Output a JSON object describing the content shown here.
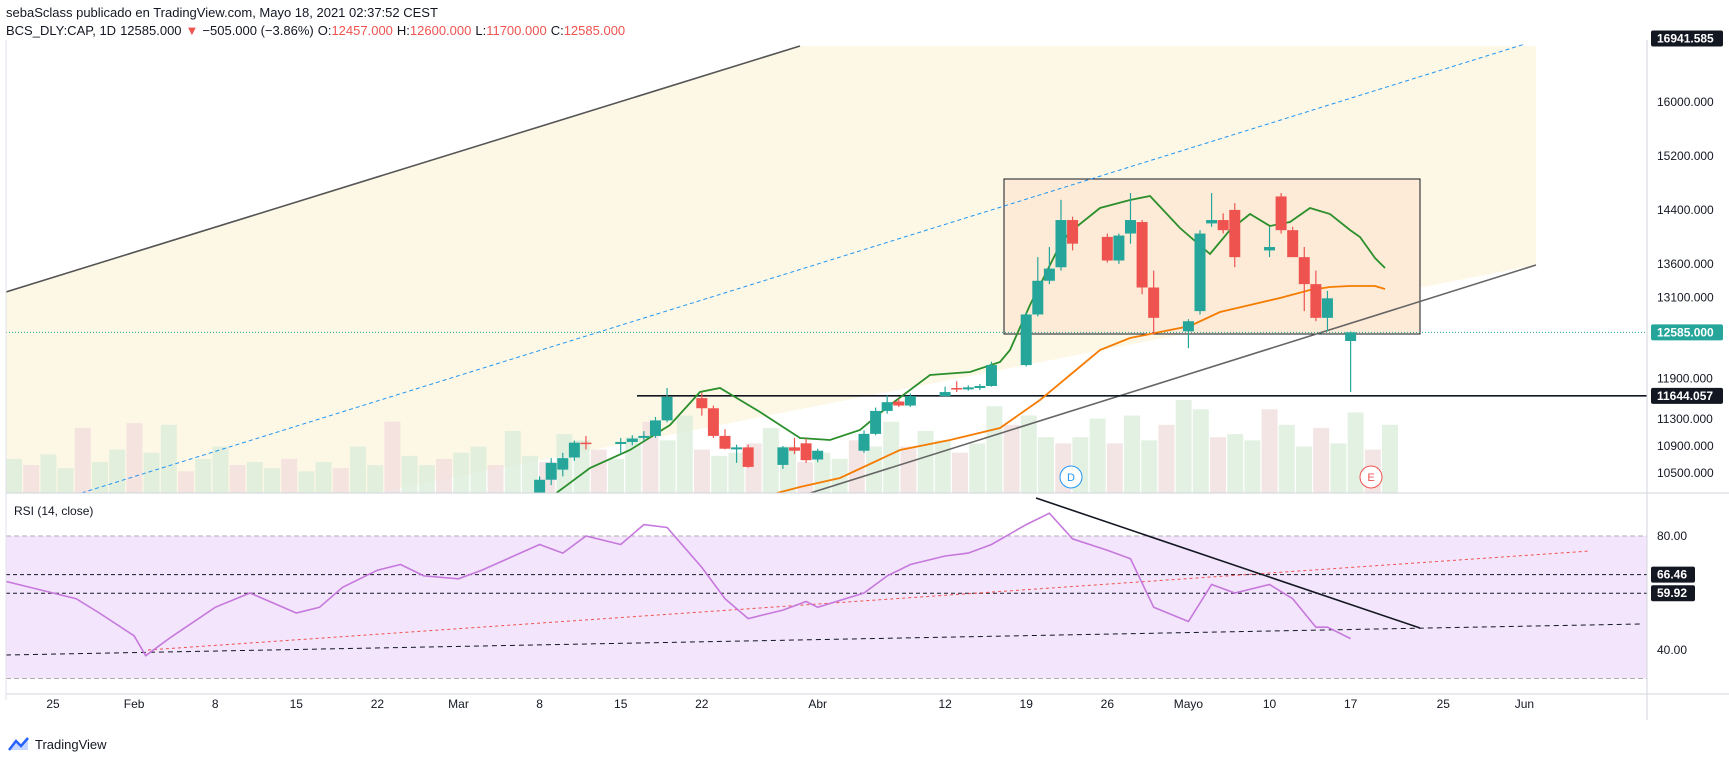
{
  "header": {
    "publisher_line": "sebaSclass publicado en TradingView.com, Mayo 18, 2021 02:37:52 CEST",
    "symbol": "BCS_DLY:CAP, 1D",
    "last": "12585.000",
    "change": "−505.000 (−3.86%)",
    "o_label": "O:",
    "o_value": "12457.000",
    "h_label": "H:",
    "h_value": "12600.000",
    "l_label": "L:",
    "l_value": "11700.000",
    "c_label": "C:",
    "c_value": "12585.000"
  },
  "brand": {
    "name": "TradingView",
    "icon": "tradingview-logo-icon"
  },
  "colors": {
    "up": "#26a69a",
    "down": "#ef5350",
    "ema_fast": "#2b8f2b",
    "ema_slow": "#f57c00",
    "rsi": "#c678dd",
    "channel_fill": "#fdf8e6",
    "box_fill": "#fdebd7",
    "rsi_band": "#f3e5fb"
  },
  "chart_data": [
    {
      "type": "candlestick",
      "symbol": "BCS_DLY:CAP",
      "interval": "1D",
      "ylim": [
        10300,
        17050
      ],
      "price_ticks": [
        "16000.000",
        "15200.000",
        "14400.000",
        "13600.000",
        "13100.000",
        "11900.000",
        "11300.000",
        "10900.000",
        "10500.000"
      ],
      "price_badges": [
        "16941.585",
        "12585.000",
        "11644.057"
      ],
      "x_ticks": [
        {
          "label": "25",
          "date": "2021-01-25"
        },
        {
          "label": "Feb",
          "date": "2021-02-01"
        },
        {
          "label": "8",
          "date": "2021-02-08"
        },
        {
          "label": "15",
          "date": "2021-02-15"
        },
        {
          "label": "22",
          "date": "2021-02-22"
        },
        {
          "label": "Mar",
          "date": "2021-03-01"
        },
        {
          "label": "8",
          "date": "2021-03-08"
        },
        {
          "label": "15",
          "date": "2021-03-15"
        },
        {
          "label": "22",
          "date": "2021-03-22"
        },
        {
          "label": "Abr",
          "date": "2021-04-01"
        },
        {
          "label": "12",
          "date": "2021-04-12"
        },
        {
          "label": "19",
          "date": "2021-04-19"
        },
        {
          "label": "26",
          "date": "2021-04-26"
        },
        {
          "label": "Mayo",
          "date": "2021-05-03"
        },
        {
          "label": "10",
          "date": "2021-05-10"
        },
        {
          "label": "17",
          "date": "2021-05-17"
        },
        {
          "label": "25",
          "date": "2021-05-25"
        },
        {
          "label": "Jun",
          "date": "2021-06-01"
        }
      ],
      "candles": [
        {
          "d": "2021-03-08",
          "o": 10200,
          "h": 10450,
          "l": 10100,
          "c": 10400
        },
        {
          "d": "2021-03-09",
          "o": 10400,
          "h": 10720,
          "l": 10320,
          "c": 10650
        },
        {
          "d": "2021-03-10",
          "o": 10550,
          "h": 10800,
          "l": 10450,
          "c": 10720
        },
        {
          "d": "2021-03-11",
          "o": 10730,
          "h": 10980,
          "l": 10680,
          "c": 10950
        },
        {
          "d": "2021-03-12",
          "o": 10950,
          "h": 11050,
          "l": 10850,
          "c": 10930
        },
        {
          "d": "2021-03-15",
          "o": 10930,
          "h": 11020,
          "l": 10780,
          "c": 10960
        },
        {
          "d": "2021-03-16",
          "o": 10960,
          "h": 11060,
          "l": 10910,
          "c": 11010
        },
        {
          "d": "2021-03-17",
          "o": 11020,
          "h": 11120,
          "l": 10980,
          "c": 11050
        },
        {
          "d": "2021-03-18",
          "o": 11050,
          "h": 11330,
          "l": 11020,
          "c": 11280
        },
        {
          "d": "2021-03-19",
          "o": 11280,
          "h": 11760,
          "l": 11250,
          "c": 11630
        },
        {
          "d": "2021-03-22",
          "o": 11610,
          "h": 11690,
          "l": 11350,
          "c": 11460
        },
        {
          "d": "2021-03-23",
          "o": 11460,
          "h": 11500,
          "l": 11020,
          "c": 11050
        },
        {
          "d": "2021-03-24",
          "o": 11050,
          "h": 11150,
          "l": 10850,
          "c": 10860
        },
        {
          "d": "2021-03-25",
          "o": 10850,
          "h": 10920,
          "l": 10650,
          "c": 10880
        },
        {
          "d": "2021-03-26",
          "o": 10880,
          "h": 10920,
          "l": 10580,
          "c": 10590
        },
        {
          "d": "2021-03-29",
          "o": 10620,
          "h": 10900,
          "l": 10560,
          "c": 10880
        },
        {
          "d": "2021-03-30",
          "o": 10880,
          "h": 11020,
          "l": 10780,
          "c": 10830
        },
        {
          "d": "2021-03-31",
          "o": 10940,
          "h": 11010,
          "l": 10650,
          "c": 10690
        },
        {
          "d": "2021-04-01",
          "o": 10700,
          "h": 10860,
          "l": 10660,
          "c": 10830
        },
        {
          "d": "2021-04-05",
          "o": 10830,
          "h": 11130,
          "l": 10800,
          "c": 11080
        },
        {
          "d": "2021-04-06",
          "o": 11080,
          "h": 11470,
          "l": 11060,
          "c": 11420
        },
        {
          "d": "2021-04-07",
          "o": 11420,
          "h": 11650,
          "l": 11380,
          "c": 11550
        },
        {
          "d": "2021-04-08",
          "o": 11560,
          "h": 11600,
          "l": 11480,
          "c": 11500
        },
        {
          "d": "2021-04-09",
          "o": 11500,
          "h": 11680,
          "l": 11480,
          "c": 11640
        },
        {
          "d": "2021-04-12",
          "o": 11640,
          "h": 11780,
          "l": 11630,
          "c": 11700
        },
        {
          "d": "2021-04-13",
          "o": 11760,
          "h": 11860,
          "l": 11700,
          "c": 11740
        },
        {
          "d": "2021-04-14",
          "o": 11740,
          "h": 11800,
          "l": 11720,
          "c": 11770
        },
        {
          "d": "2021-04-15",
          "o": 11760,
          "h": 11820,
          "l": 11730,
          "c": 11790
        },
        {
          "d": "2021-04-16",
          "o": 11790,
          "h": 12150,
          "l": 11780,
          "c": 12100
        },
        {
          "d": "2021-04-19",
          "o": 12100,
          "h": 12880,
          "l": 12080,
          "c": 12850
        },
        {
          "d": "2021-04-20",
          "o": 12850,
          "h": 13700,
          "l": 12820,
          "c": 13350
        },
        {
          "d": "2021-04-21",
          "o": 13350,
          "h": 13850,
          "l": 13300,
          "c": 13530
        },
        {
          "d": "2021-04-22",
          "o": 13550,
          "h": 14550,
          "l": 13500,
          "c": 14250
        },
        {
          "d": "2021-04-23",
          "o": 14250,
          "h": 14300,
          "l": 13800,
          "c": 13900
        },
        {
          "d": "2021-04-26",
          "o": 14000,
          "h": 14050,
          "l": 13620,
          "c": 13650
        },
        {
          "d": "2021-04-27",
          "o": 13650,
          "h": 14050,
          "l": 13600,
          "c": 14020
        },
        {
          "d": "2021-04-28",
          "o": 14050,
          "h": 14650,
          "l": 13900,
          "c": 14250
        },
        {
          "d": "2021-04-29",
          "o": 14220,
          "h": 14250,
          "l": 13150,
          "c": 13250
        },
        {
          "d": "2021-04-30",
          "o": 13250,
          "h": 13500,
          "l": 12550,
          "c": 12800
        },
        {
          "d": "2021-05-03",
          "o": 12600,
          "h": 12780,
          "l": 12350,
          "c": 12750
        },
        {
          "d": "2021-05-04",
          "o": 12900,
          "h": 14100,
          "l": 12850,
          "c": 14050
        },
        {
          "d": "2021-05-05",
          "o": 14200,
          "h": 14650,
          "l": 14150,
          "c": 14250
        },
        {
          "d": "2021-05-06",
          "o": 14250,
          "h": 14350,
          "l": 14050,
          "c": 14100
        },
        {
          "d": "2021-05-07",
          "o": 14400,
          "h": 14500,
          "l": 13550,
          "c": 13700
        },
        {
          "d": "2021-05-10",
          "o": 13800,
          "h": 14150,
          "l": 13700,
          "c": 13850
        },
        {
          "d": "2021-05-11",
          "o": 14600,
          "h": 14650,
          "l": 14050,
          "c": 14100
        },
        {
          "d": "2021-05-12",
          "o": 14100,
          "h": 14150,
          "l": 13700,
          "c": 13700
        },
        {
          "d": "2021-05-13",
          "o": 13700,
          "h": 13850,
          "l": 12900,
          "c": 13300
        },
        {
          "d": "2021-05-14",
          "o": 13300,
          "h": 13500,
          "l": 12750,
          "c": 12800
        },
        {
          "d": "2021-05-15",
          "o": 12800,
          "h": 13200,
          "l": 12600,
          "c": 13090
        },
        {
          "d": "2021-05-17",
          "o": 12457,
          "h": 12600,
          "l": 11700,
          "c": 12585
        }
      ]
    },
    {
      "type": "line",
      "title": "RSI (14, close)",
      "ylim": [
        20,
        95
      ],
      "ticks": [
        "80.00",
        "40.00"
      ],
      "badges": [
        "66.46",
        "59.92"
      ],
      "series": [
        {
          "values": [
            [
              "2021-01-20",
              65
            ],
            [
              "2021-01-25",
              60
            ],
            [
              "2021-01-27",
              58
            ],
            [
              "2021-01-29",
              53
            ],
            [
              "2021-02-01",
              45
            ],
            [
              "2021-02-02",
              38
            ],
            [
              "2021-02-04",
              44
            ],
            [
              "2021-02-08",
              55
            ],
            [
              "2021-02-11",
              60
            ],
            [
              "2021-02-15",
              53
            ],
            [
              "2021-02-17",
              55
            ],
            [
              "2021-02-19",
              62
            ],
            [
              "2021-02-22",
              68
            ],
            [
              "2021-02-24",
              70
            ],
            [
              "2021-02-26",
              66
            ],
            [
              "2021-03-01",
              65
            ],
            [
              "2021-03-03",
              68
            ],
            [
              "2021-03-08",
              77
            ],
            [
              "2021-03-10",
              74
            ],
            [
              "2021-03-12",
              80
            ],
            [
              "2021-03-15",
              77
            ],
            [
              "2021-03-17",
              84
            ],
            [
              "2021-03-19",
              83
            ],
            [
              "2021-03-22",
              69
            ],
            [
              "2021-03-24",
              58
            ],
            [
              "2021-03-26",
              51
            ],
            [
              "2021-03-29",
              54
            ],
            [
              "2021-03-31",
              57
            ],
            [
              "2021-04-01",
              55
            ],
            [
              "2021-04-05",
              60
            ],
            [
              "2021-04-07",
              66
            ],
            [
              "2021-04-09",
              70
            ],
            [
              "2021-04-12",
              73
            ],
            [
              "2021-04-14",
              74
            ],
            [
              "2021-04-16",
              77
            ],
            [
              "2021-04-19",
              84
            ],
            [
              "2021-04-21",
              88
            ],
            [
              "2021-04-23",
              79
            ],
            [
              "2021-04-26",
              75
            ],
            [
              "2021-04-28",
              72
            ],
            [
              "2021-04-30",
              55
            ],
            [
              "2021-05-03",
              50
            ],
            [
              "2021-05-05",
              63
            ],
            [
              "2021-05-07",
              60
            ],
            [
              "2021-05-10",
              63
            ],
            [
              "2021-05-12",
              58
            ],
            [
              "2021-05-14",
              48
            ],
            [
              "2021-05-15",
              48
            ],
            [
              "2021-05-17",
              44
            ]
          ]
        }
      ]
    }
  ]
}
